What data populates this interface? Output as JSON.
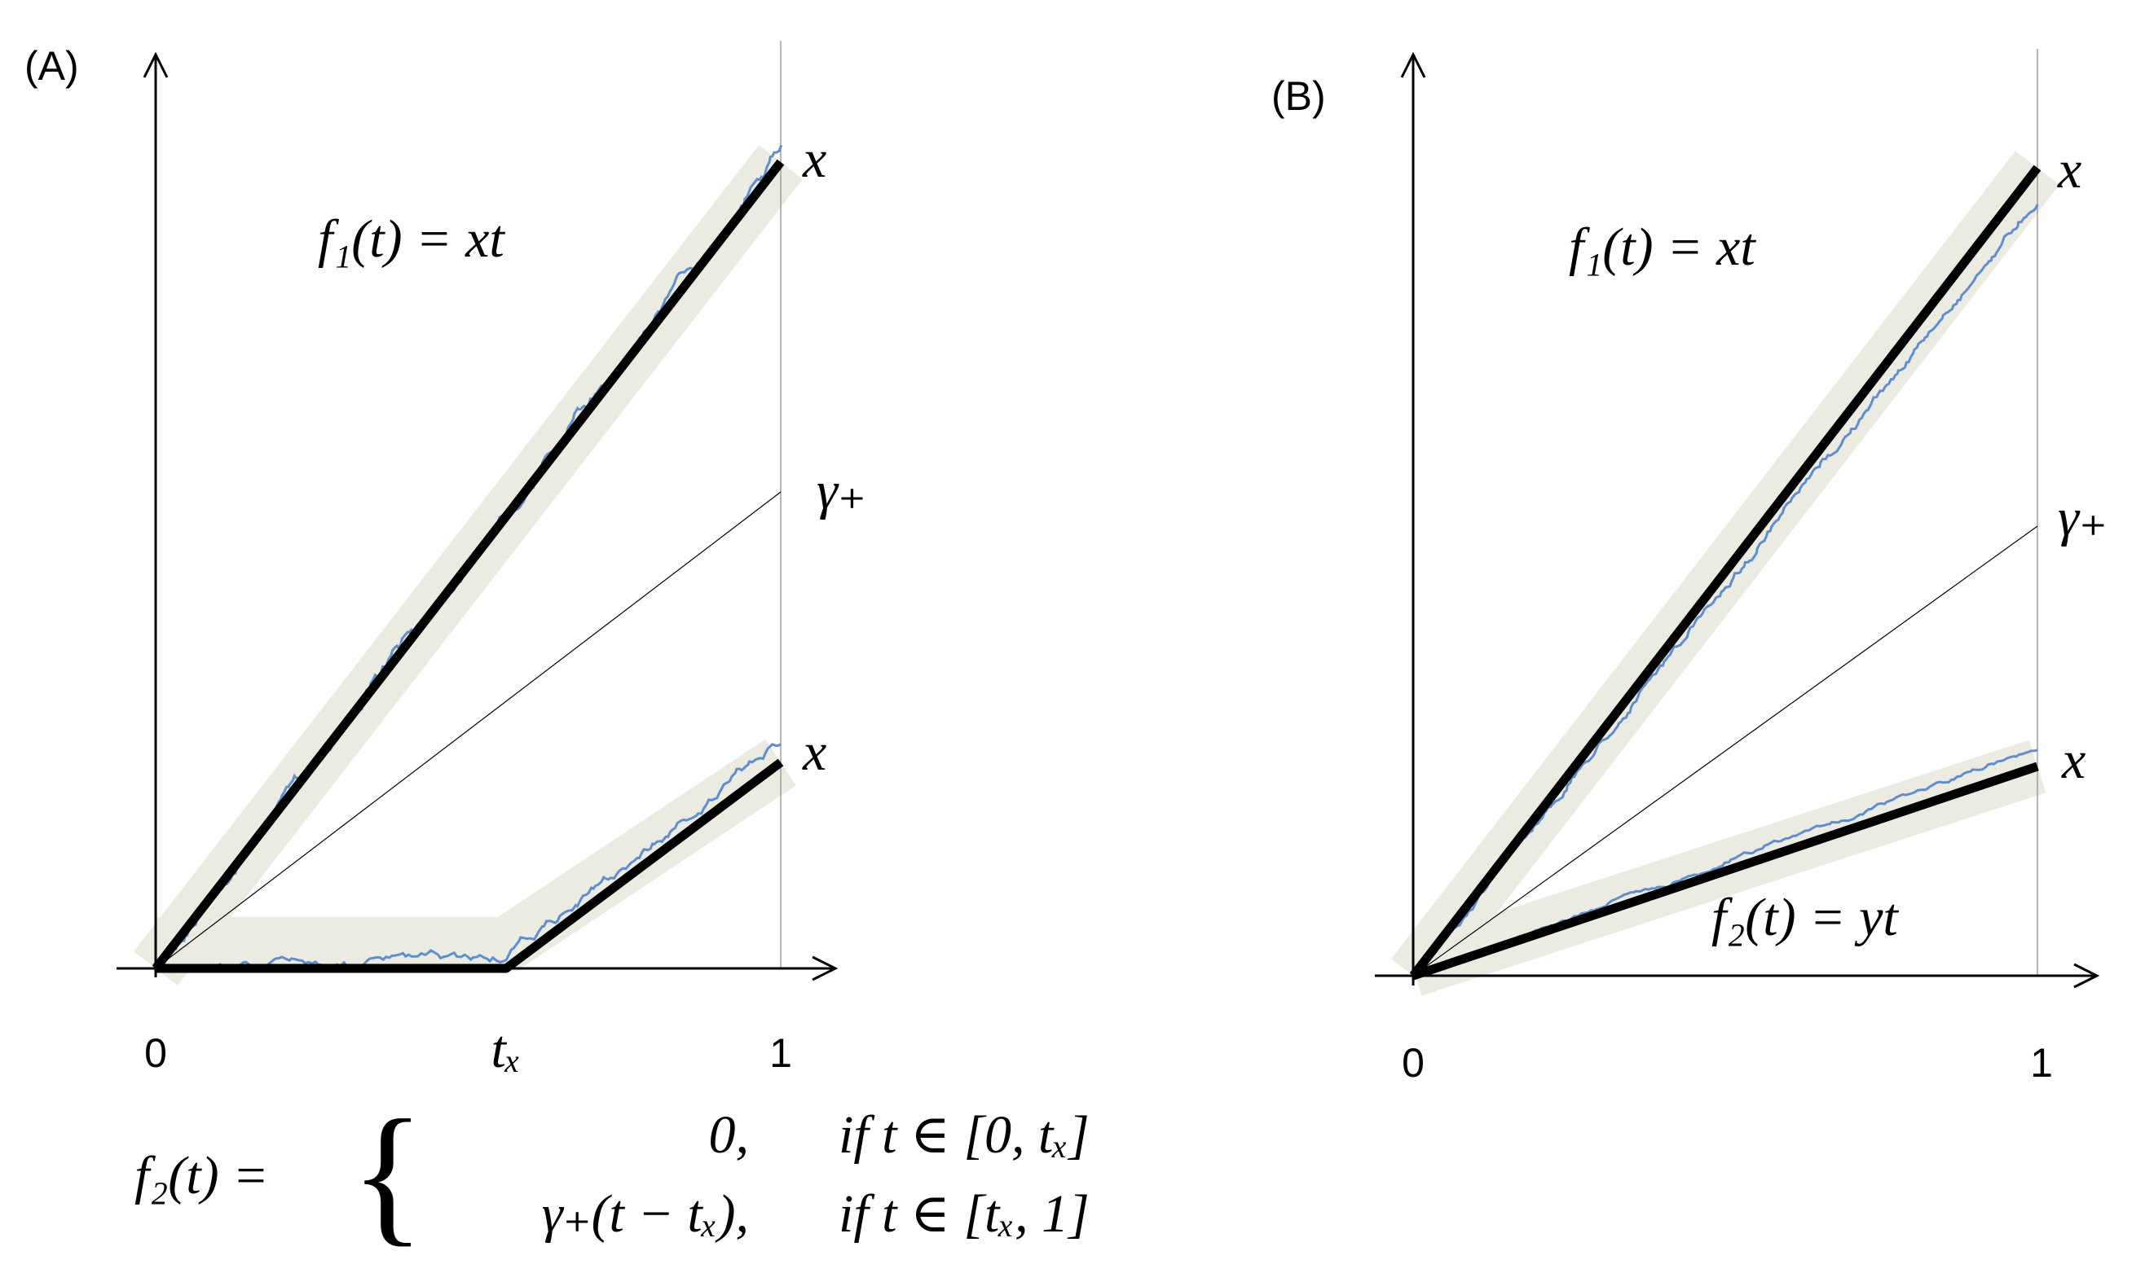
{
  "panels": [
    {
      "label": "(A)",
      "upper_end_label": "x",
      "gamma_label": "γ₊",
      "f1_label": "f₁(t) = xt",
      "lower_end_label": "x",
      "x_tick_labels": [
        "0",
        "tₓ",
        "1"
      ]
    },
    {
      "label": "(B)",
      "upper_end_label": "x",
      "gamma_label": "γ₊",
      "f1_label": "f₁(t) = xt",
      "lower_end_label": "x",
      "f2_label": "f₂(t) = yt",
      "x_tick_labels": [
        "0",
        "1"
      ]
    }
  ],
  "formula": {
    "lhs": "f₂(t) =",
    "rows": [
      [
        "0,",
        "if t ∈ [0, tₓ]"
      ],
      [
        "γ₊(t − tₓ),",
        "if t ∈ [tₓ, 1]"
      ]
    ]
  }
}
